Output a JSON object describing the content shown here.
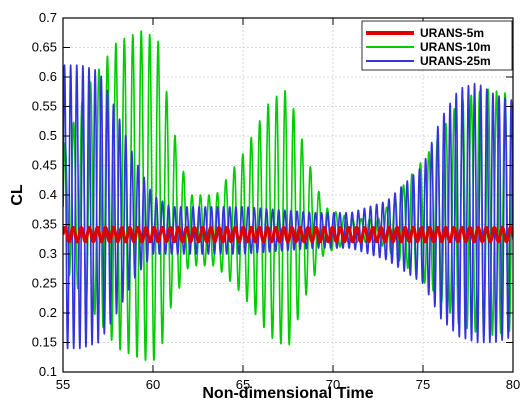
{
  "chart_data": {
    "type": "line",
    "title": "",
    "xlabel": "Non-dimensional Time",
    "ylabel": "CL",
    "xlim": [
      55,
      80
    ],
    "ylim": [
      0.1,
      0.7
    ],
    "xticks": [
      "55",
      "60",
      "65",
      "70",
      "75",
      "80"
    ],
    "yticks": [
      "0.1",
      "0.15",
      "0.2",
      "0.25",
      "0.3",
      "0.35",
      "0.4",
      "0.45",
      "0.5",
      "0.55",
      "0.6",
      "0.65",
      "0.7"
    ],
    "grid": true,
    "legend": "top-right",
    "series": [
      {
        "name": "URANS-5m",
        "color": "#dd0000",
        "period": 0.45,
        "envelope": {
          "t": [
            55,
            80
          ],
          "mean": [
            0.333,
            0.333
          ],
          "amp": [
            0.012,
            0.012
          ]
        }
      },
      {
        "name": "URANS-10m",
        "color": "#00cc00",
        "period": 0.47,
        "envelope": {
          "t": [
            55,
            56.5,
            58,
            59.5,
            60.3,
            61,
            62,
            63.5,
            65,
            66.5,
            67.5,
            68.5,
            69.5,
            71,
            72.5,
            74,
            75.5,
            77,
            78.5,
            80
          ],
          "mean": [
            0.38,
            0.4,
            0.4,
            0.4,
            0.39,
            0.37,
            0.34,
            0.34,
            0.35,
            0.36,
            0.36,
            0.35,
            0.34,
            0.34,
            0.34,
            0.35,
            0.36,
            0.37,
            0.37,
            0.37
          ],
          "amp": [
            0.1,
            0.19,
            0.26,
            0.28,
            0.27,
            0.16,
            0.06,
            0.06,
            0.12,
            0.2,
            0.22,
            0.12,
            0.04,
            0.02,
            0.02,
            0.07,
            0.12,
            0.19,
            0.21,
            0.2
          ]
        }
      },
      {
        "name": "URANS-25m",
        "color": "#3333dd",
        "period": 0.34,
        "envelope": {
          "t": [
            55,
            56,
            57,
            58,
            59,
            60,
            61,
            62,
            63,
            65,
            67,
            69,
            70,
            71,
            73,
            75,
            76,
            77,
            78,
            79,
            80
          ],
          "mean": [
            0.38,
            0.38,
            0.38,
            0.37,
            0.36,
            0.35,
            0.34,
            0.34,
            0.34,
            0.34,
            0.34,
            0.34,
            0.34,
            0.34,
            0.34,
            0.35,
            0.36,
            0.37,
            0.37,
            0.36,
            0.36
          ],
          "amp": [
            0.24,
            0.24,
            0.23,
            0.17,
            0.1,
            0.05,
            0.04,
            0.04,
            0.04,
            0.04,
            0.035,
            0.03,
            0.03,
            0.03,
            0.05,
            0.1,
            0.17,
            0.21,
            0.22,
            0.21,
            0.2
          ]
        }
      }
    ]
  }
}
